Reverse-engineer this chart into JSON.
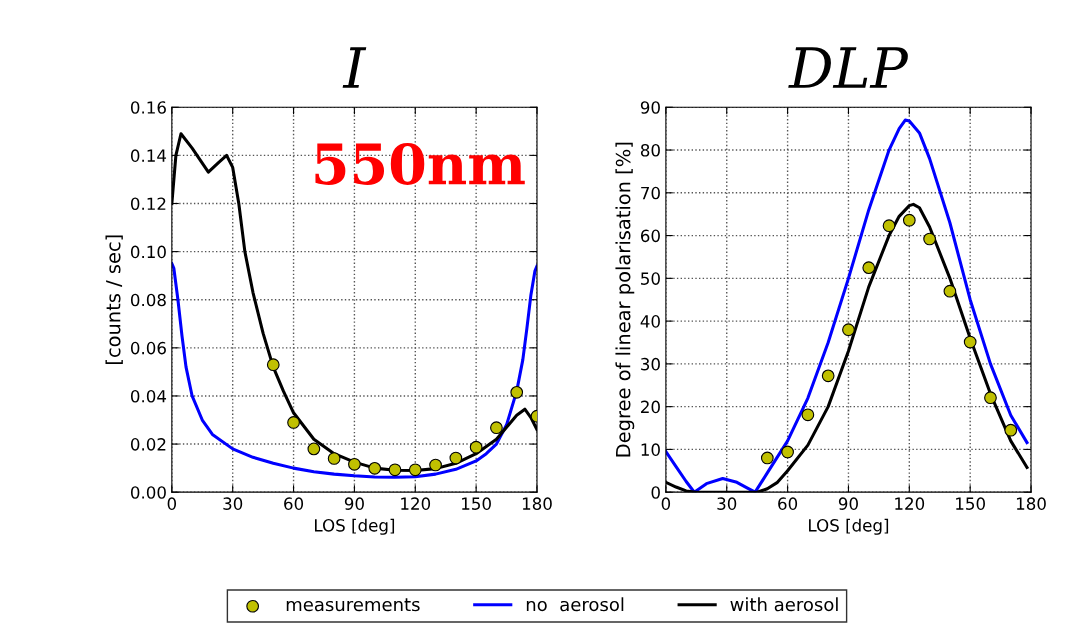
{
  "chart_data": [
    {
      "type": "line",
      "title": "I",
      "xlabel": "LOS [deg]",
      "ylabel": "[counts / sec]",
      "xlim": [
        0,
        180
      ],
      "xticks": [
        0,
        30,
        60,
        90,
        120,
        150,
        180
      ],
      "ylim": [
        0,
        0.16
      ],
      "yticks": [
        {
          "value": 0,
          "label": "0.00"
        },
        {
          "value": 0.02,
          "label": "0.02"
        },
        {
          "value": 0.04,
          "label": "0.04"
        },
        {
          "value": 0.06,
          "label": "0.06"
        },
        {
          "value": 0.08,
          "label": "0.08"
        },
        {
          "value": 0.1,
          "label": "0.10"
        },
        {
          "value": 0.12,
          "label": "0.12"
        },
        {
          "value": 0.14,
          "label": "0.14"
        },
        {
          "value": 0.16,
          "label": "0.16"
        }
      ],
      "grid": true,
      "legend": "bottom",
      "annotations": [
        "550nm"
      ],
      "series": [
        {
          "name": "measurements",
          "type": "scatter",
          "marker": "circle",
          "color": "#c0c000",
          "x": [
            50,
            60,
            70,
            80,
            90,
            100,
            110,
            120,
            130,
            140,
            150,
            160,
            170,
            180
          ],
          "values": [
            0.053,
            0.029,
            0.018,
            0.014,
            0.0116,
            0.0099,
            0.0093,
            0.0093,
            0.0113,
            0.0142,
            0.0187,
            0.0268,
            0.0415,
            0.0316
          ]
        },
        {
          "name": "no  aerosol",
          "color": "#0000ff",
          "x": [
            0,
            1,
            3,
            5,
            7,
            10,
            15,
            20,
            30,
            40,
            50,
            60,
            70,
            80,
            90,
            100,
            110,
            120,
            130,
            140,
            150,
            155,
            160,
            165,
            170,
            173,
            175,
            177,
            179,
            180
          ],
          "values": [
            0.095,
            0.093,
            0.08,
            0.065,
            0.052,
            0.04,
            0.03,
            0.024,
            0.018,
            0.0145,
            0.012,
            0.01,
            0.0085,
            0.0075,
            0.0068,
            0.0063,
            0.0062,
            0.0064,
            0.0075,
            0.0095,
            0.013,
            0.016,
            0.02,
            0.028,
            0.042,
            0.055,
            0.068,
            0.082,
            0.092,
            0.094
          ]
        },
        {
          "name": "with aerosol",
          "color": "#000000",
          "x": [
            0,
            2,
            4.5,
            10,
            18,
            23,
            27,
            30,
            33,
            36,
            40,
            45,
            50,
            55,
            60,
            70,
            80,
            90,
            100,
            110,
            120,
            130,
            140,
            150,
            160,
            165,
            170,
            174,
            177,
            180
          ],
          "values": [
            0.12,
            0.14,
            0.149,
            0.143,
            0.133,
            0.137,
            0.14,
            0.135,
            0.12,
            0.1,
            0.083,
            0.066,
            0.052,
            0.042,
            0.033,
            0.022,
            0.016,
            0.0125,
            0.01,
            0.0091,
            0.009,
            0.0098,
            0.012,
            0.016,
            0.022,
            0.027,
            0.032,
            0.0345,
            0.031,
            0.026
          ]
        }
      ]
    },
    {
      "type": "line",
      "title": "DLP",
      "xlabel": "LOS [deg]",
      "ylabel": "Degree of linear polarisation [%]",
      "xlim": [
        0,
        180
      ],
      "xticks": [
        0,
        30,
        60,
        90,
        120,
        150,
        180
      ],
      "ylim": [
        0,
        90
      ],
      "yticks": [
        0,
        10,
        20,
        30,
        40,
        50,
        60,
        70,
        80,
        90
      ],
      "grid": true,
      "series": [
        {
          "type": "scatter",
          "marker": "circle",
          "color": "#c0c000",
          "x": [
            50,
            60,
            70,
            80,
            90,
            100,
            110,
            120,
            130,
            140,
            150,
            160,
            170
          ],
          "values": [
            8.0,
            9.4,
            18.1,
            27.2,
            38.0,
            52.5,
            62.3,
            63.6,
            59.2,
            47.0,
            35.1,
            22.1,
            14.5
          ]
        },
        {
          "color": "#0000ff",
          "x": [
            0,
            5,
            10,
            14,
            20,
            28,
            35,
            40,
            44,
            50,
            60,
            70,
            80,
            90,
            100,
            110,
            115,
            118,
            120,
            125,
            130,
            140,
            150,
            160,
            170,
            178
          ],
          "values": [
            9.5,
            6,
            2.5,
            0,
            2.0,
            3.2,
            2.3,
            1.0,
            0,
            4.5,
            12,
            22,
            35,
            50,
            66,
            80,
            85,
            87,
            86.8,
            84,
            78,
            63,
            45,
            30,
            18,
            11.6
          ]
        },
        {
          "color": "#000000",
          "x": [
            0,
            5,
            10,
            15,
            30,
            45,
            50,
            55,
            60,
            70,
            80,
            90,
            100,
            110,
            115,
            120,
            122,
            125,
            130,
            140,
            150,
            160,
            170,
            178
          ],
          "values": [
            2.3,
            1.2,
            0.3,
            0,
            0,
            0,
            0.8,
            2.3,
            5,
            11,
            20,
            33,
            48,
            60,
            64.5,
            67,
            67.3,
            66.5,
            62,
            50,
            36,
            23,
            12,
            5.8
          ]
        }
      ]
    }
  ]
}
